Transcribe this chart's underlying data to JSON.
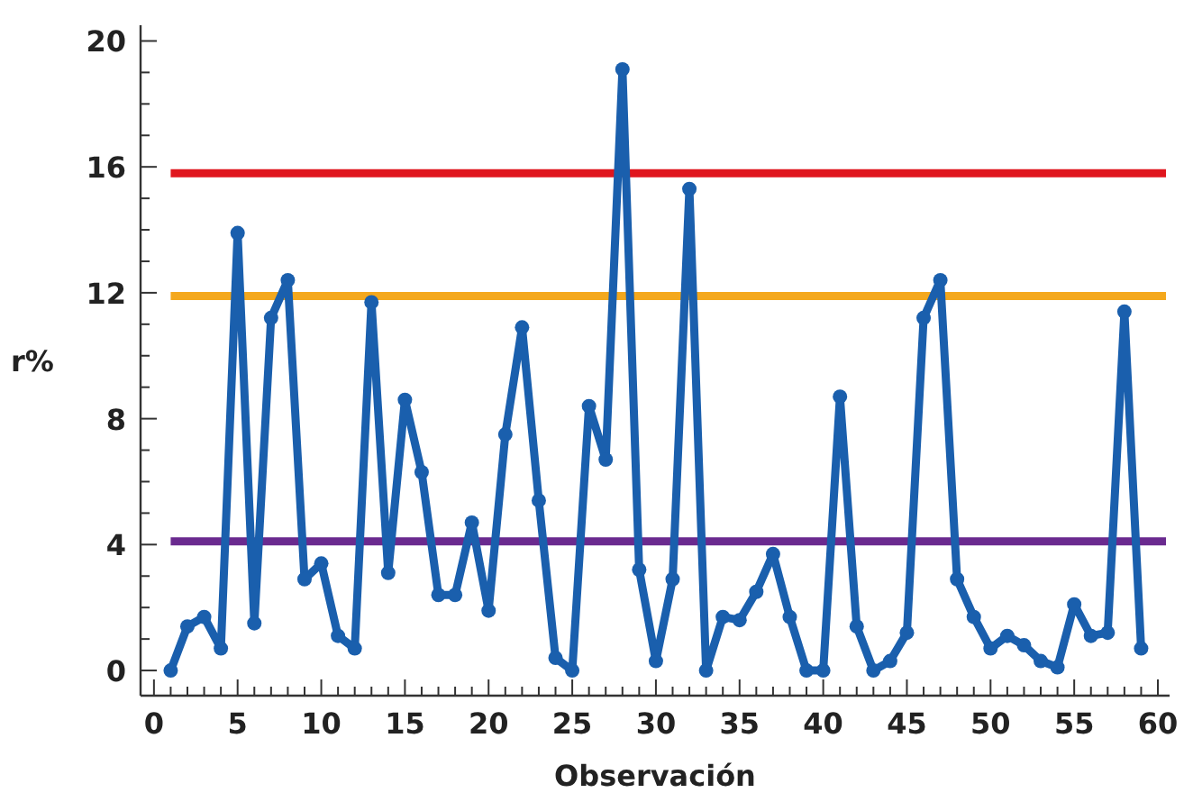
{
  "chart_data": {
    "type": "line",
    "xlabel": "Observación",
    "ylabel": "r%",
    "x": [
      1,
      2,
      3,
      4,
      5,
      6,
      7,
      8,
      9,
      10,
      11,
      12,
      13,
      14,
      15,
      16,
      17,
      18,
      19,
      20,
      21,
      22,
      23,
      24,
      25,
      26,
      27,
      28,
      29,
      30,
      31,
      32,
      33,
      34,
      35,
      36,
      37,
      38,
      39,
      40,
      41,
      42,
      43,
      44,
      45,
      46,
      47,
      48,
      49,
      50,
      51,
      52,
      53,
      54,
      55,
      56,
      57,
      58,
      59
    ],
    "series": [
      {
        "color": "#1a5fad",
        "values": [
          0,
          1.4,
          1.7,
          0.7,
          13.9,
          1.5,
          11.2,
          12.4,
          2.9,
          3.4,
          1.1,
          0.7,
          11.7,
          3.1,
          8.6,
          6.3,
          2.4,
          2.4,
          4.7,
          1.9,
          7.5,
          10.9,
          5.4,
          0.4,
          0,
          8.4,
          6.7,
          19.1,
          3.2,
          0.3,
          2.9,
          15.3,
          0,
          1.7,
          1.6,
          2.5,
          3.7,
          1.7,
          0,
          0,
          8.7,
          1.4,
          0,
          0.3,
          1.2,
          11.2,
          12.4,
          2.9,
          1.7,
          0.7,
          1.1,
          0.8,
          0.3,
          0.1,
          2.1,
          1.1,
          1.2,
          11.4,
          0.7
        ]
      }
    ],
    "xlim": [
      -0.8,
      60.7
    ],
    "ylim": [
      -0.8,
      20.5
    ],
    "xticks": [
      {
        "value": 0,
        "label": "0"
      },
      {
        "value": 1,
        "label": null
      },
      {
        "value": 2,
        "label": null
      },
      {
        "value": 3,
        "label": null
      },
      {
        "value": 4,
        "label": null
      },
      {
        "value": 5,
        "label": "5"
      },
      {
        "value": 6,
        "label": null
      },
      {
        "value": 7,
        "label": null
      },
      {
        "value": 8,
        "label": null
      },
      {
        "value": 9,
        "label": null
      },
      {
        "value": 10,
        "label": "10"
      },
      {
        "value": 11,
        "label": null
      },
      {
        "value": 12,
        "label": null
      },
      {
        "value": 13,
        "label": null
      },
      {
        "value": 14,
        "label": null
      },
      {
        "value": 15,
        "label": "15"
      },
      {
        "value": 16,
        "label": null
      },
      {
        "value": 17,
        "label": null
      },
      {
        "value": 18,
        "label": null
      },
      {
        "value": 19,
        "label": null
      },
      {
        "value": 20,
        "label": "20"
      },
      {
        "value": 21,
        "label": null
      },
      {
        "value": 22,
        "label": null
      },
      {
        "value": 23,
        "label": null
      },
      {
        "value": 24,
        "label": null
      },
      {
        "value": 25,
        "label": "25"
      },
      {
        "value": 26,
        "label": null
      },
      {
        "value": 27,
        "label": null
      },
      {
        "value": 28,
        "label": null
      },
      {
        "value": 29,
        "label": null
      },
      {
        "value": 30,
        "label": "30"
      },
      {
        "value": 31,
        "label": null
      },
      {
        "value": 32,
        "label": null
      },
      {
        "value": 33,
        "label": null
      },
      {
        "value": 34,
        "label": null
      },
      {
        "value": 35,
        "label": "35"
      },
      {
        "value": 36,
        "label": null
      },
      {
        "value": 37,
        "label": null
      },
      {
        "value": 38,
        "label": null
      },
      {
        "value": 39,
        "label": null
      },
      {
        "value": 40,
        "label": "40"
      },
      {
        "value": 41,
        "label": null
      },
      {
        "value": 42,
        "label": null
      },
      {
        "value": 43,
        "label": null
      },
      {
        "value": 44,
        "label": null
      },
      {
        "value": 45,
        "label": "45"
      },
      {
        "value": 46,
        "label": null
      },
      {
        "value": 47,
        "label": null
      },
      {
        "value": 48,
        "label": null
      },
      {
        "value": 49,
        "label": null
      },
      {
        "value": 50,
        "label": "50"
      },
      {
        "value": 51,
        "label": null
      },
      {
        "value": 52,
        "label": null
      },
      {
        "value": 53,
        "label": null
      },
      {
        "value": 54,
        "label": null
      },
      {
        "value": 55,
        "label": "55"
      },
      {
        "value": 56,
        "label": null
      },
      {
        "value": 57,
        "label": null
      },
      {
        "value": 58,
        "label": null
      },
      {
        "value": 59,
        "label": null
      },
      {
        "value": 60,
        "label": "60"
      }
    ],
    "yticks": [
      {
        "value": 0,
        "label": "0"
      },
      {
        "value": 1,
        "label": null
      },
      {
        "value": 2,
        "label": null
      },
      {
        "value": 3,
        "label": null
      },
      {
        "value": 4,
        "label": "4"
      },
      {
        "value": 5,
        "label": null
      },
      {
        "value": 6,
        "label": null
      },
      {
        "value": 7,
        "label": null
      },
      {
        "value": 8,
        "label": "8"
      },
      {
        "value": 9,
        "label": null
      },
      {
        "value": 10,
        "label": null
      },
      {
        "value": 11,
        "label": null
      },
      {
        "value": 12,
        "label": "12"
      },
      {
        "value": 13,
        "label": null
      },
      {
        "value": 14,
        "label": null
      },
      {
        "value": 15,
        "label": null
      },
      {
        "value": 16,
        "label": "16"
      },
      {
        "value": 17,
        "label": null
      },
      {
        "value": 18,
        "label": null
      },
      {
        "value": 19,
        "label": null
      },
      {
        "value": 20,
        "label": "20"
      }
    ],
    "ref_lines": [
      {
        "axis": "y",
        "value": 15.8,
        "color": "#e0161e"
      },
      {
        "axis": "y",
        "value": 11.9,
        "color": "#f4a81d"
      },
      {
        "axis": "y",
        "value": 4.1,
        "color": "#6a2a8f"
      }
    ],
    "marker": "circle",
    "line_style": "solid"
  }
}
